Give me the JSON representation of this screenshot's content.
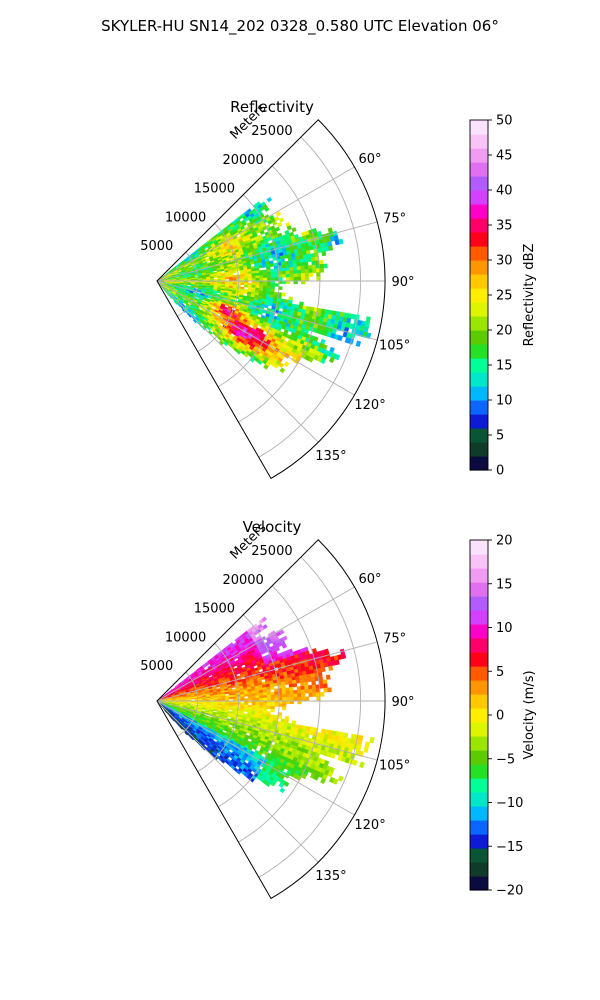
{
  "figure": {
    "suptitle": "SKYLER-HU  SN14_202  0328_0.580 UTC Elevation 06°"
  },
  "chart_data": [
    {
      "type": "heatmap",
      "title": "Reflectivity",
      "projection": "polar-sector",
      "theta_range_deg": [
        45,
        150
      ],
      "r_max": 28000,
      "r_axis_label": "Meters",
      "r_ticks": [
        5000,
        10000,
        15000,
        20000,
        25000
      ],
      "r_tick_labels": [
        "5000",
        "10000",
        "15000",
        "20000",
        "25000"
      ],
      "theta_ticks": [
        60,
        75,
        90,
        105,
        120,
        135
      ],
      "theta_tick_labels": [
        "60°",
        "75°",
        "90°",
        "105°",
        "120°",
        "135°"
      ],
      "grid": true,
      "colorbar": {
        "label": "Reflectivity dBZ",
        "range": [
          0,
          50
        ],
        "ticks": [
          0,
          5,
          10,
          15,
          20,
          25,
          30,
          35,
          40,
          45,
          50
        ],
        "tick_labels": [
          "0",
          "5",
          "10",
          "15",
          "20",
          "25",
          "30",
          "35",
          "40",
          "45",
          "50"
        ],
        "colors": [
          "#0b0b40",
          "#103a2a",
          "#0a5535",
          "#0d1bd6",
          "#0a66ff",
          "#00b8ff",
          "#00e8c8",
          "#00ff96",
          "#25e025",
          "#5ccc00",
          "#9be600",
          "#dcf500",
          "#ffee00",
          "#ffc800",
          "#ff9500",
          "#ff5a00",
          "#ff0018",
          "#ff006a",
          "#ff00c8",
          "#d440ff",
          "#b25cff",
          "#e070f0",
          "#f09cf2",
          "#f8c4f8",
          "#fbe2fb"
        ]
      }
    },
    {
      "type": "heatmap",
      "title": "Velocity",
      "projection": "polar-sector",
      "theta_range_deg": [
        45,
        150
      ],
      "r_max": 28000,
      "r_axis_label": "Meters",
      "r_ticks": [
        5000,
        10000,
        15000,
        20000,
        25000
      ],
      "r_tick_labels": [
        "5000",
        "10000",
        "15000",
        "20000",
        "25000"
      ],
      "theta_ticks": [
        60,
        75,
        90,
        105,
        120,
        135
      ],
      "theta_tick_labels": [
        "60°",
        "75°",
        "90°",
        "105°",
        "120°",
        "135°"
      ],
      "grid": true,
      "colorbar": {
        "label": "Velocity (m/s)",
        "range": [
          -20,
          20
        ],
        "ticks": [
          -20,
          -15,
          -10,
          -5,
          0,
          5,
          10,
          15,
          20
        ],
        "tick_labels": [
          "−20",
          "−15",
          "−10",
          "−5",
          "0",
          "5",
          "10",
          "15",
          "20"
        ],
        "colors": [
          "#0b0b40",
          "#103a2a",
          "#0a5535",
          "#0d1bd6",
          "#0a66ff",
          "#00b8ff",
          "#00e8c8",
          "#00ff96",
          "#25e025",
          "#5ccc00",
          "#9be600",
          "#dcf500",
          "#ffee00",
          "#ffc800",
          "#ff9500",
          "#ff5a00",
          "#ff0018",
          "#ff006a",
          "#ff00c8",
          "#d440ff",
          "#b25cff",
          "#e070f0",
          "#f09cf2",
          "#f8c4f8",
          "#fbe2fb"
        ]
      }
    }
  ]
}
